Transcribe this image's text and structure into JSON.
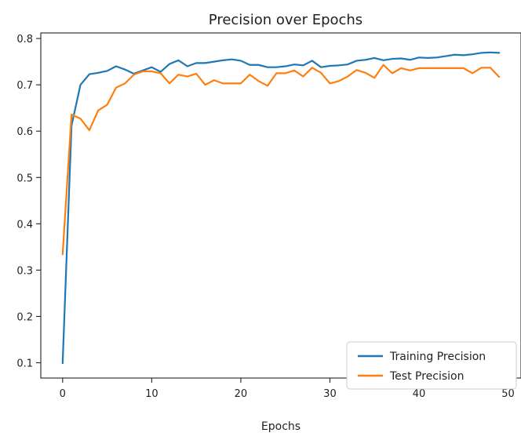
{
  "chart_data": {
    "type": "line",
    "title": "Precision over Epochs",
    "xlabel": "Epochs",
    "ylabel": "",
    "xlim": [
      -2.45,
      51.45
    ],
    "ylim": [
      0.067,
      0.812
    ],
    "xticks": [
      0,
      10,
      20,
      30,
      40,
      50
    ],
    "yticks": [
      0.1,
      0.2,
      0.3,
      0.4,
      0.5,
      0.6,
      0.7,
      0.8
    ],
    "grid": false,
    "legend_position": "lower-right",
    "x": [
      0,
      1,
      2,
      3,
      4,
      5,
      6,
      7,
      8,
      9,
      10,
      11,
      12,
      13,
      14,
      15,
      16,
      17,
      18,
      19,
      20,
      21,
      22,
      23,
      24,
      25,
      26,
      27,
      28,
      29,
      30,
      31,
      32,
      33,
      34,
      35,
      36,
      37,
      38,
      39,
      40,
      41,
      42,
      43,
      44,
      45,
      46,
      47,
      48,
      49
    ],
    "series": [
      {
        "name": "Training Precision",
        "color": "#1f77b4",
        "values": [
          0.099,
          0.612,
          0.7,
          0.723,
          0.726,
          0.73,
          0.74,
          0.733,
          0.724,
          0.731,
          0.738,
          0.728,
          0.745,
          0.753,
          0.74,
          0.747,
          0.747,
          0.75,
          0.753,
          0.755,
          0.752,
          0.743,
          0.743,
          0.738,
          0.738,
          0.74,
          0.744,
          0.742,
          0.752,
          0.738,
          0.741,
          0.742,
          0.744,
          0.752,
          0.754,
          0.758,
          0.753,
          0.756,
          0.757,
          0.754,
          0.759,
          0.758,
          0.759,
          0.762,
          0.765,
          0.764,
          0.766,
          0.769,
          0.77,
          0.769
        ]
      },
      {
        "name": "Test Precision",
        "color": "#ff7f0e",
        "values": [
          0.334,
          0.636,
          0.627,
          0.602,
          0.645,
          0.657,
          0.694,
          0.703,
          0.722,
          0.729,
          0.729,
          0.725,
          0.703,
          0.722,
          0.718,
          0.724,
          0.7,
          0.71,
          0.703,
          0.703,
          0.703,
          0.722,
          0.708,
          0.698,
          0.725,
          0.725,
          0.731,
          0.718,
          0.737,
          0.726,
          0.703,
          0.708,
          0.718,
          0.732,
          0.726,
          0.715,
          0.743,
          0.725,
          0.736,
          0.731,
          0.736,
          0.736,
          0.736,
          0.736,
          0.736,
          0.736,
          0.725,
          0.737,
          0.737,
          0.717
        ]
      }
    ]
  }
}
